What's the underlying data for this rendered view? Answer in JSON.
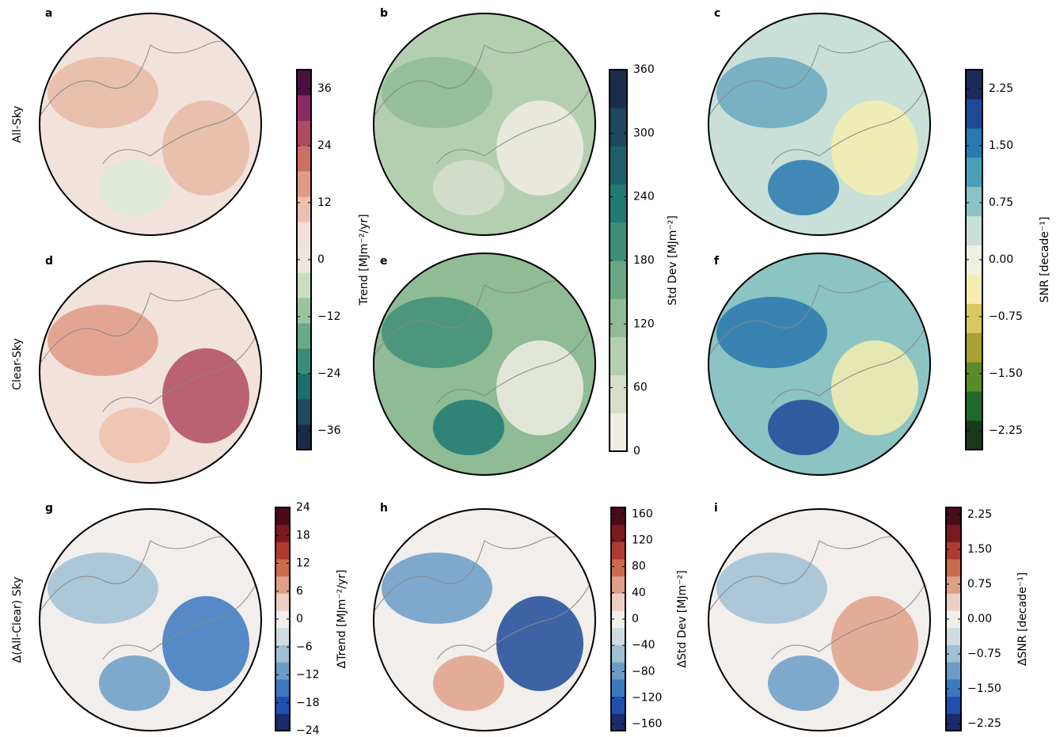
{
  "panels": [
    {
      "letter": "a"
    },
    {
      "letter": "b"
    },
    {
      "letter": "c"
    },
    {
      "letter": "d"
    },
    {
      "letter": "e"
    },
    {
      "letter": "f"
    },
    {
      "letter": "g"
    },
    {
      "letter": "h"
    },
    {
      "letter": "i"
    }
  ],
  "row_labels": [
    "All-Sky",
    "Clear-Sky",
    "Δ(All-Clear) Sky"
  ],
  "colorbars": [
    {
      "label": "Trend [MJm⁻²/yr]",
      "lim": [
        -40,
        40
      ],
      "ticks": [
        {
          "value": -36,
          "label": "−36"
        },
        {
          "value": -24,
          "label": "−24"
        },
        {
          "value": -12,
          "label": "−12"
        },
        0,
        12,
        24,
        36
      ],
      "colors": [
        "#1b2a4a",
        "#1e4a5c",
        "#1f6b6e",
        "#3a8a7a",
        "#6aa88a",
        "#9cc3a0",
        "#c8dcc4",
        "#ece8e0",
        "#f2e2dc",
        "#eebfae",
        "#e09a85",
        "#cc6f66",
        "#b04a62",
        "#8a2a62",
        "#4a1040"
      ]
    },
    {
      "label": "Std Dev [MJm⁻²]",
      "lim": [
        0,
        360
      ],
      "ticks": [
        0,
        60,
        120,
        180,
        240,
        300,
        360
      ],
      "colors": [
        "#f1ede4",
        "#d6dfcc",
        "#b4cfb0",
        "#8fbb95",
        "#69a683",
        "#3f8f78",
        "#1f7a72",
        "#1d5f68",
        "#1e465c",
        "#1b2d4a"
      ]
    },
    {
      "label": "SNR [decade⁻¹]",
      "lim": [
        -2.5,
        2.5
      ],
      "ticks": [
        {
          "value": -2.25,
          "label": "−2.25"
        },
        {
          "value": -1.5,
          "label": "−1.50"
        },
        {
          "value": -0.75,
          "label": "−0.75"
        },
        {
          "value": 0,
          "label": "0.00"
        },
        {
          "value": 0.75,
          "label": "0.75"
        },
        {
          "value": 1.5,
          "label": "1.50"
        },
        {
          "value": 2.25,
          "label": "2.25"
        }
      ],
      "colors": [
        "#1a3a1e",
        "#1f6a2a",
        "#5a8a2a",
        "#a8a030",
        "#d8c860",
        "#f6eeb0",
        "#eef0e0",
        "#c8e0d8",
        "#8cc4c4",
        "#4aa0b8",
        "#2a78b0",
        "#1e4a98",
        "#1a2a5a"
      ]
    },
    {
      "label": "ΔTrend [MJm⁻²/yr]",
      "lim": [
        -24,
        24
      ],
      "ticks": [
        {
          "value": -24,
          "label": "−24"
        },
        {
          "value": -18,
          "label": "−18"
        },
        {
          "value": -12,
          "label": "−12"
        },
        {
          "value": -6,
          "label": "−6"
        },
        0,
        6,
        12,
        18,
        24
      ],
      "colors": [
        "#1a2a6a",
        "#1f50b0",
        "#3a78c0",
        "#6a9cc8",
        "#a0c0d4",
        "#ccdce0",
        "#f2eeec",
        "#ecd0c4",
        "#e0a088",
        "#cc6a4e",
        "#b03a30",
        "#7a1a20",
        "#4a0a18"
      ]
    },
    {
      "label": "ΔStd Dev [MJm⁻²]",
      "lim": [
        -170,
        170
      ],
      "ticks": [
        {
          "value": -160,
          "label": "−160"
        },
        {
          "value": -120,
          "label": "−120"
        },
        {
          "value": -80,
          "label": "−80"
        },
        {
          "value": -40,
          "label": "−40"
        },
        0,
        40,
        80,
        120,
        160
      ],
      "colors": [
        "#1a2a6a",
        "#1f50b0",
        "#3a78c0",
        "#6a9cc8",
        "#a0c0d4",
        "#ccdce0",
        "#f2eeec",
        "#ecd0c4",
        "#e0a088",
        "#cc6a4e",
        "#b03a30",
        "#7a1a20",
        "#4a0a18"
      ]
    },
    {
      "label": "ΔSNR [decade⁻¹]",
      "lim": [
        -2.4,
        2.4
      ],
      "ticks": [
        {
          "value": -2.25,
          "label": "−2.25"
        },
        {
          "value": -1.5,
          "label": "−1.50"
        },
        {
          "value": -0.75,
          "label": "−0.75"
        },
        {
          "value": 0,
          "label": "0.00"
        },
        {
          "value": 0.75,
          "label": "0.75"
        },
        {
          "value": 1.5,
          "label": "1.50"
        },
        {
          "value": 2.25,
          "label": "2.25"
        }
      ],
      "colors": [
        "#1a2a6a",
        "#1f50b0",
        "#3a78c0",
        "#6a9cc8",
        "#a0c0d4",
        "#ccdce0",
        "#f2eeec",
        "#ecd0c4",
        "#e0a088",
        "#cc6a4e",
        "#b03a30",
        "#7a1a20",
        "#4a0a18"
      ]
    }
  ]
}
